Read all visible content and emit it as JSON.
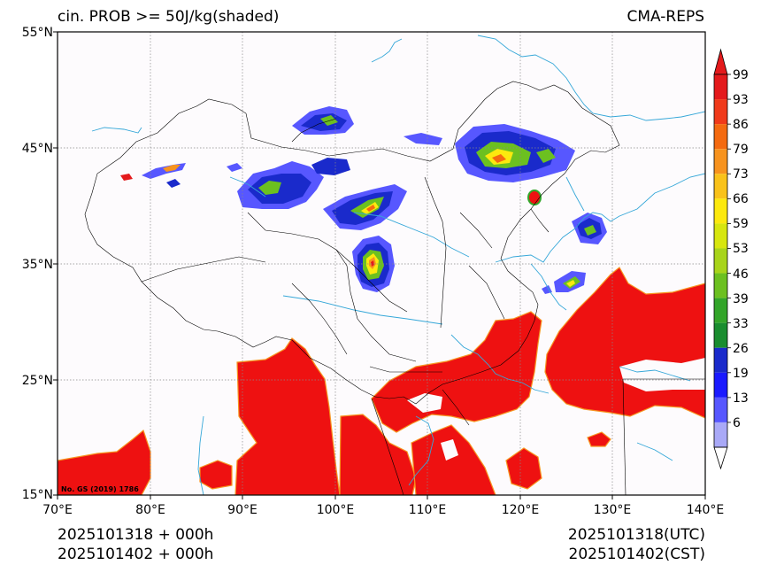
{
  "header": {
    "title_left": "cin. PROB >= 50J/kg(shaded)",
    "title_right": "CMA-REPS"
  },
  "footer": {
    "left_line1": "2025101318  +  000h",
    "left_line2": "2025101402  +  000h",
    "right_line1": "2025101318(UTC)",
    "right_line2": "2025101402(CST)"
  },
  "map": {
    "lat_labels": [
      "55°N",
      "45°N",
      "35°N",
      "25°N",
      "15°N"
    ],
    "lon_labels": [
      "70°E",
      "80°E",
      "90°E",
      "100°E",
      "110°E",
      "120°E",
      "130°E",
      "140°E"
    ],
    "approval_no": "No. GS (2019) 1786",
    "extent": {
      "lon": [
        70,
        140
      ],
      "lat": [
        15,
        55
      ]
    }
  },
  "colorbar": {
    "labels": [
      "99",
      "93",
      "86",
      "79",
      "73",
      "66",
      "59",
      "53",
      "46",
      "39",
      "33",
      "26",
      "19",
      "13",
      "6"
    ],
    "colors": [
      "#e41a1c",
      "#f03a1a",
      "#f46a10",
      "#f7931e",
      "#f9c21a",
      "#fce90e",
      "#d7e60f",
      "#a8d41a",
      "#6cc020",
      "#33a529",
      "#1a8d2f",
      "#1a2acb",
      "#1a1aff",
      "#5757ff",
      "#a9a9f7"
    ],
    "extend": "both"
  },
  "colors": {
    "coast": "#35a7d8",
    "border": "#000000",
    "grid": "#888888",
    "background": "#fdfbfd"
  }
}
